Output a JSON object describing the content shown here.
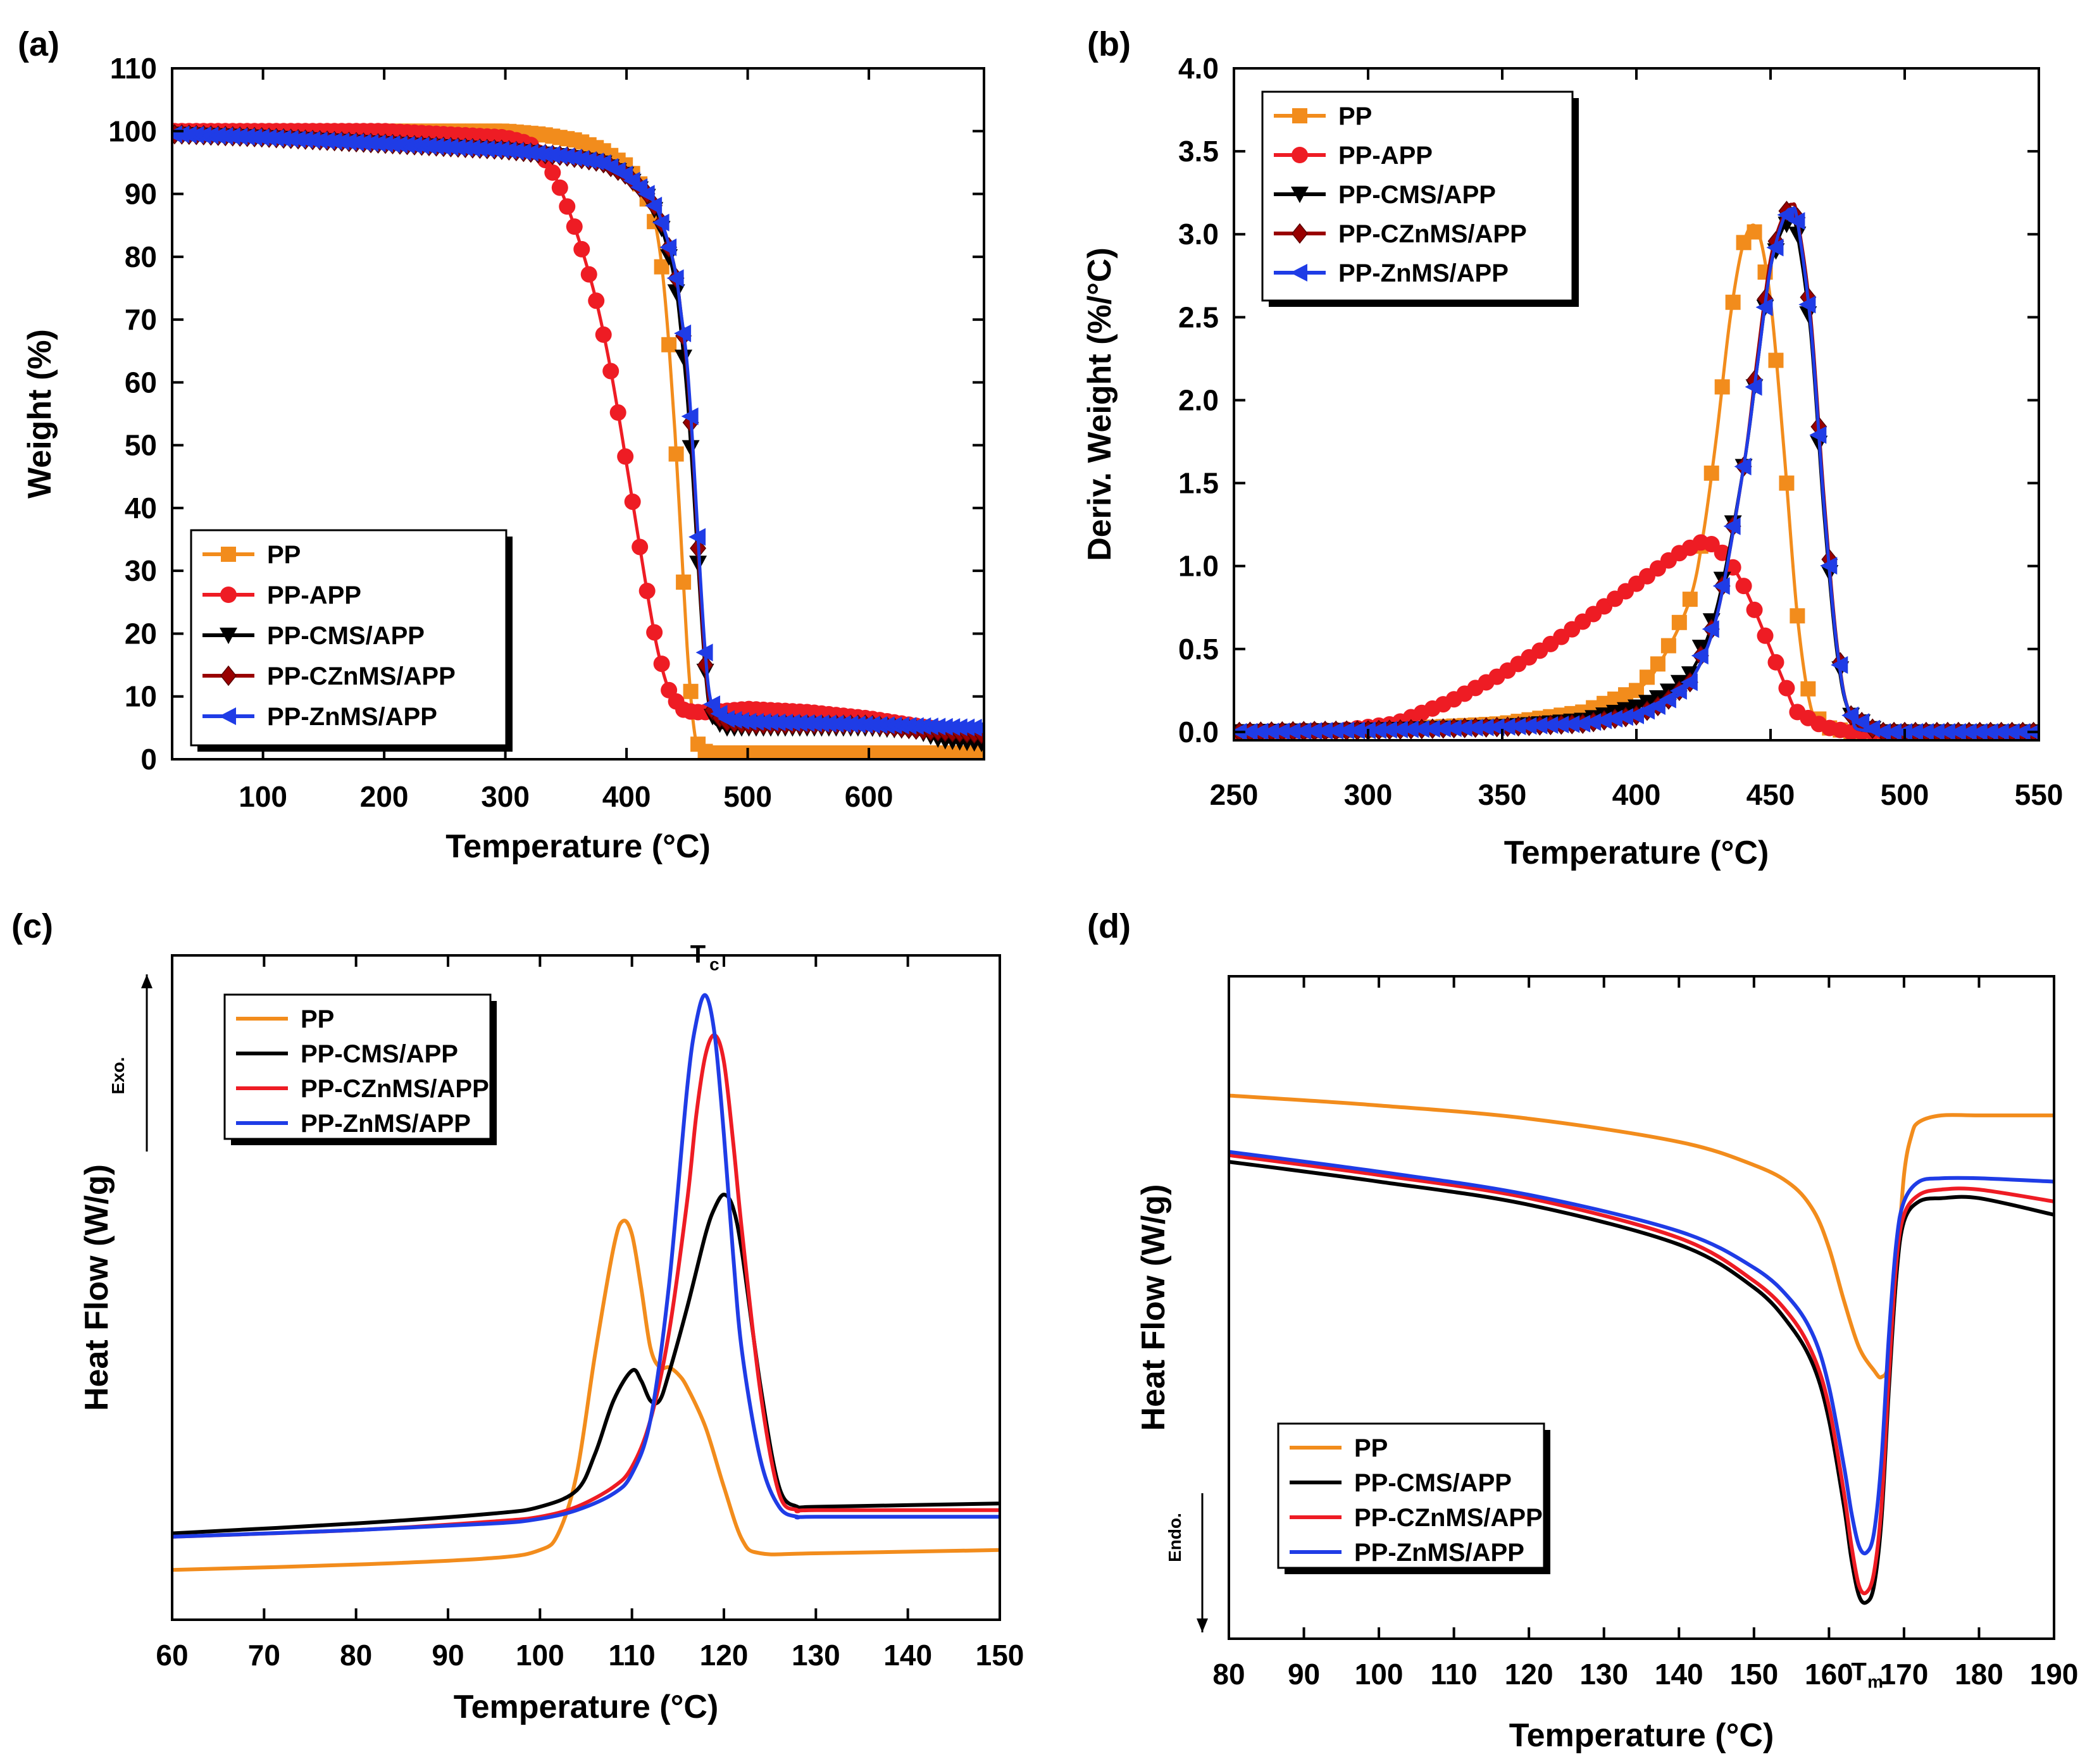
{
  "chart_data": [
    {
      "id": "a",
      "type": "line",
      "panel_label": "(a)",
      "xlabel": "Temperature (°C)",
      "ylabel": "Weight (%)",
      "xlim": [
        25,
        695
      ],
      "ylim": [
        0,
        110
      ],
      "xticks": [
        100,
        200,
        300,
        400,
        500,
        600
      ],
      "yticks": [
        0,
        10,
        20,
        30,
        40,
        50,
        60,
        70,
        80,
        90,
        100,
        110
      ],
      "legend_position": "bottom-left",
      "series": [
        {
          "name": "PP",
          "color": "#f28c1c",
          "marker": "square",
          "x": [
            30,
            100,
            200,
            300,
            330,
            360,
            380,
            400,
            410,
            420,
            425,
            430,
            435,
            440,
            445,
            450,
            455,
            460,
            470,
            500,
            600,
            695
          ],
          "y": [
            100,
            100,
            100,
            100,
            99.5,
            98.5,
            97,
            94.5,
            92,
            88,
            84,
            77,
            66,
            52,
            35,
            18,
            6,
            1.5,
            1,
            1,
            1,
            1
          ]
        },
        {
          "name": "PP-APP",
          "color": "#ee1c24",
          "marker": "circle",
          "x": [
            30,
            100,
            200,
            300,
            320,
            335,
            345,
            355,
            365,
            375,
            385,
            395,
            405,
            415,
            425,
            435,
            445,
            455,
            470,
            500,
            550,
            600,
            650,
            695
          ],
          "y": [
            100,
            100,
            100,
            99,
            98,
            95,
            91,
            86,
            80,
            73,
            64,
            53,
            41,
            29,
            18,
            11,
            8,
            7.5,
            7.5,
            8,
            7.5,
            6.5,
            5,
            4
          ]
        },
        {
          "name": "PP-CMS/APP",
          "color": "#000000",
          "marker": "triangle-down",
          "x": [
            30,
            100,
            200,
            300,
            350,
            380,
            400,
            420,
            430,
            440,
            445,
            450,
            455,
            460,
            465,
            470,
            480,
            500,
            600,
            640,
            660,
            695
          ],
          "y": [
            99.5,
            99,
            98,
            97,
            96,
            95,
            93,
            89,
            84,
            76,
            68,
            58,
            44,
            28,
            14,
            7,
            5,
            5,
            5,
            4.5,
            3,
            2.5
          ]
        },
        {
          "name": "PP-CZnMS/APP",
          "color": "#990000",
          "marker": "diamond",
          "x": [
            30,
            100,
            200,
            300,
            350,
            380,
            400,
            420,
            430,
            440,
            445,
            450,
            455,
            460,
            465,
            470,
            480,
            500,
            600,
            650,
            695
          ],
          "y": [
            99.5,
            99,
            98,
            97,
            96,
            95,
            93,
            89.5,
            85,
            78,
            71,
            62,
            48,
            30,
            15,
            8,
            6,
            5.5,
            5.5,
            4.5,
            4
          ]
        },
        {
          "name": "PP-ZnMS/APP",
          "color": "#1f3ce6",
          "marker": "triangle-left",
          "x": [
            30,
            100,
            200,
            300,
            350,
            380,
            400,
            420,
            430,
            440,
            445,
            450,
            455,
            460,
            465,
            470,
            480,
            500,
            600,
            695
          ],
          "y": [
            99.5,
            99,
            98,
            97,
            96,
            95,
            93,
            89.5,
            85,
            78,
            71,
            63,
            49,
            32,
            17,
            9,
            6.5,
            6,
            5.5,
            5
          ]
        }
      ]
    },
    {
      "id": "b",
      "type": "line",
      "panel_label": "(b)",
      "xlabel": "Temperature (°C)",
      "ylabel": "Deriv. Weight (%/°C)",
      "xlim": [
        250,
        550
      ],
      "ylim": [
        -0.05,
        4.0
      ],
      "xticks": [
        250,
        300,
        350,
        400,
        450,
        500,
        550
      ],
      "yticks": [
        0.0,
        0.5,
        1.0,
        1.5,
        2.0,
        2.5,
        3.0,
        3.5,
        4.0
      ],
      "y_tick_labels": [
        "0.0",
        "0.5",
        "1.0",
        "1.5",
        "2.0",
        "2.5",
        "3.0",
        "3.5",
        "4.0"
      ],
      "legend_position": "top-left",
      "series": [
        {
          "name": "PP",
          "color": "#f28c1c",
          "marker": "square",
          "x": [
            250,
            300,
            350,
            380,
            400,
            410,
            420,
            425,
            430,
            435,
            440,
            445,
            450,
            455,
            460,
            465,
            470,
            480,
            550
          ],
          "y": [
            0,
            0.01,
            0.05,
            0.12,
            0.25,
            0.45,
            0.8,
            1.2,
            1.8,
            2.5,
            2.95,
            3.03,
            2.6,
            1.7,
            0.7,
            0.15,
            0.03,
            0,
            0
          ]
        },
        {
          "name": "PP-APP",
          "color": "#ee1c24",
          "marker": "circle",
          "x": [
            250,
            290,
            310,
            330,
            350,
            370,
            390,
            405,
            415,
            425,
            430,
            435,
            440,
            445,
            450,
            455,
            460,
            470,
            480,
            550
          ],
          "y": [
            0,
            0.01,
            0.05,
            0.18,
            0.35,
            0.55,
            0.78,
            0.95,
            1.07,
            1.15,
            1.12,
            1.02,
            0.88,
            0.7,
            0.5,
            0.3,
            0.12,
            0.03,
            0,
            0
          ]
        },
        {
          "name": "PP-CMS/APP",
          "color": "#000000",
          "marker": "triangle-down",
          "x": [
            250,
            300,
            350,
            380,
            400,
            410,
            420,
            430,
            440,
            445,
            450,
            455,
            458,
            460,
            465,
            470,
            475,
            480,
            490,
            550
          ],
          "y": [
            0,
            0.01,
            0.03,
            0.07,
            0.15,
            0.22,
            0.35,
            0.75,
            1.6,
            2.2,
            2.8,
            3.05,
            3.08,
            3.0,
            2.4,
            1.3,
            0.45,
            0.1,
            0,
            0
          ]
        },
        {
          "name": "PP-CZnMS/APP",
          "color": "#990000",
          "marker": "diamond",
          "x": [
            250,
            300,
            350,
            380,
            400,
            410,
            420,
            430,
            440,
            445,
            450,
            455,
            458,
            460,
            465,
            470,
            475,
            480,
            490,
            550
          ],
          "y": [
            0,
            0.01,
            0.03,
            0.05,
            0.1,
            0.17,
            0.3,
            0.7,
            1.6,
            2.25,
            2.85,
            3.12,
            3.18,
            3.1,
            2.5,
            1.4,
            0.5,
            0.1,
            0,
            0
          ]
        },
        {
          "name": "PP-ZnMS/APP",
          "color": "#1f3ce6",
          "marker": "triangle-left",
          "x": [
            250,
            300,
            350,
            380,
            400,
            410,
            420,
            430,
            440,
            445,
            450,
            455,
            458,
            460,
            465,
            470,
            475,
            480,
            490,
            550
          ],
          "y": [
            0,
            0.01,
            0.03,
            0.05,
            0.1,
            0.17,
            0.3,
            0.7,
            1.6,
            2.2,
            2.8,
            3.1,
            3.15,
            3.08,
            2.45,
            1.35,
            0.48,
            0.1,
            0,
            0
          ]
        }
      ]
    },
    {
      "id": "c",
      "type": "line",
      "panel_label": "(c)",
      "xlabel": "Temperature (°C)",
      "ylabel": "Heat Flow (W/g)",
      "xlim": [
        60,
        150
      ],
      "ylim": [
        0,
        100
      ],
      "xticks": [
        60,
        70,
        80,
        90,
        100,
        110,
        120,
        130,
        140,
        150
      ],
      "legend_position": "top-left",
      "arrow_label": "Exo.",
      "peak_annotation": {
        "main": "T",
        "sub": "c"
      },
      "series": [
        {
          "name": "PP",
          "color": "#f28c1c",
          "marker": "none",
          "x": [
            60,
            80,
            95,
            100,
            102,
            104,
            106,
            108,
            109,
            110,
            111,
            112,
            113,
            114,
            115,
            116,
            118,
            120,
            122,
            124,
            130,
            150
          ],
          "y": [
            7.5,
            8.3,
            9.3,
            10.5,
            13,
            22,
            40,
            56,
            60,
            58,
            50,
            41,
            38,
            38,
            37,
            35,
            29,
            20,
            12,
            10,
            10,
            10.5
          ]
        },
        {
          "name": "PP-CMS/APP",
          "color": "#000000",
          "marker": "none",
          "x": [
            60,
            80,
            95,
            100,
            104,
            106,
            108,
            110,
            111,
            112,
            113,
            114,
            116,
            118,
            119,
            120,
            121,
            122,
            124,
            126,
            128,
            130,
            150
          ],
          "y": [
            13,
            14.5,
            16,
            17,
            19.5,
            25,
            33,
            37.5,
            36,
            33,
            33,
            37,
            47,
            58,
            62,
            64,
            62,
            55,
            35,
            20,
            17,
            17,
            17.5
          ]
        },
        {
          "name": "PP-CZnMS/APP",
          "color": "#ee1c24",
          "marker": "none",
          "x": [
            60,
            80,
            95,
            100,
            104,
            108,
            110,
            112,
            114,
            116,
            117,
            118,
            119,
            120,
            121,
            122,
            124,
            126,
            128,
            130,
            150
          ],
          "y": [
            12.5,
            13.5,
            14.8,
            15.5,
            17,
            20,
            23,
            30,
            43,
            63,
            76,
            85,
            88,
            84,
            72,
            58,
            34,
            19,
            16.5,
            16.5,
            16.5
          ]
        },
        {
          "name": "PP-ZnMS/APP",
          "color": "#1f3ce6",
          "marker": "none",
          "x": [
            60,
            80,
            95,
            100,
            104,
            108,
            110,
            112,
            114,
            116,
            117,
            118,
            119,
            120,
            121,
            122,
            124,
            126,
            128,
            130,
            150
          ],
          "y": [
            12.5,
            13.5,
            14.5,
            15.2,
            16.5,
            19,
            22,
            30,
            50,
            80,
            90,
            94,
            88,
            73,
            55,
            40,
            24,
            17,
            15.5,
            15.5,
            15.5
          ]
        }
      ]
    },
    {
      "id": "d",
      "type": "line",
      "panel_label": "(d)",
      "xlabel": "Temperature (°C)",
      "ylabel": "Heat Flow (W/g)",
      "xlim": [
        80,
        190
      ],
      "ylim": [
        0,
        100
      ],
      "xticks": [
        80,
        90,
        100,
        110,
        120,
        130,
        140,
        150,
        160,
        170,
        180,
        190
      ],
      "legend_position": "bottom-left",
      "arrow_label": "Endo.",
      "peak_annotation": {
        "main": "T",
        "sub": "m"
      },
      "series": [
        {
          "name": "PP",
          "color": "#f28c1c",
          "marker": "none",
          "x": [
            80,
            100,
            120,
            140,
            150,
            155,
            158,
            160,
            162,
            164,
            166,
            167,
            168,
            169,
            170,
            171,
            172,
            175,
            180,
            190
          ],
          "y": [
            82,
            80.5,
            78.5,
            75,
            71.5,
            68.5,
            64.5,
            59,
            51,
            44,
            40.5,
            39.5,
            42,
            55,
            70,
            76,
            78,
            79,
            79,
            79
          ]
        },
        {
          "name": "PP-CMS/APP",
          "color": "#000000",
          "marker": "none",
          "x": [
            80,
            100,
            120,
            140,
            150,
            155,
            158,
            160,
            162,
            163,
            164,
            165,
            166,
            167,
            168,
            169,
            170,
            172,
            175,
            180,
            190
          ],
          "y": [
            72,
            69,
            65.5,
            59.5,
            53,
            47,
            41,
            33,
            20,
            12,
            6.5,
            5.5,
            8,
            18,
            38,
            55,
            63,
            66,
            66.5,
            66.5,
            64
          ]
        },
        {
          "name": "PP-CZnMS/APP",
          "color": "#ee1c24",
          "marker": "none",
          "x": [
            80,
            100,
            120,
            140,
            150,
            155,
            158,
            160,
            162,
            163,
            164,
            165,
            166,
            167,
            168,
            169,
            170,
            172,
            175,
            180,
            190
          ],
          "y": [
            73,
            70,
            66.5,
            60.5,
            54,
            48.5,
            42.5,
            35,
            22,
            14,
            8,
            7,
            10,
            20,
            40,
            57,
            64,
            67,
            67.8,
            67.8,
            66
          ]
        },
        {
          "name": "PP-ZnMS/APP",
          "color": "#1f3ce6",
          "marker": "none",
          "x": [
            80,
            100,
            120,
            140,
            150,
            155,
            158,
            160,
            162,
            163,
            164,
            165,
            166,
            167,
            168,
            169,
            170,
            172,
            175,
            180,
            190
          ],
          "y": [
            73.5,
            70.5,
            67,
            61.5,
            56,
            51,
            45.5,
            38,
            26,
            19,
            14,
            13,
            16,
            27,
            46,
            60,
            66,
            69,
            69.5,
            69.5,
            69
          ]
        }
      ]
    }
  ]
}
